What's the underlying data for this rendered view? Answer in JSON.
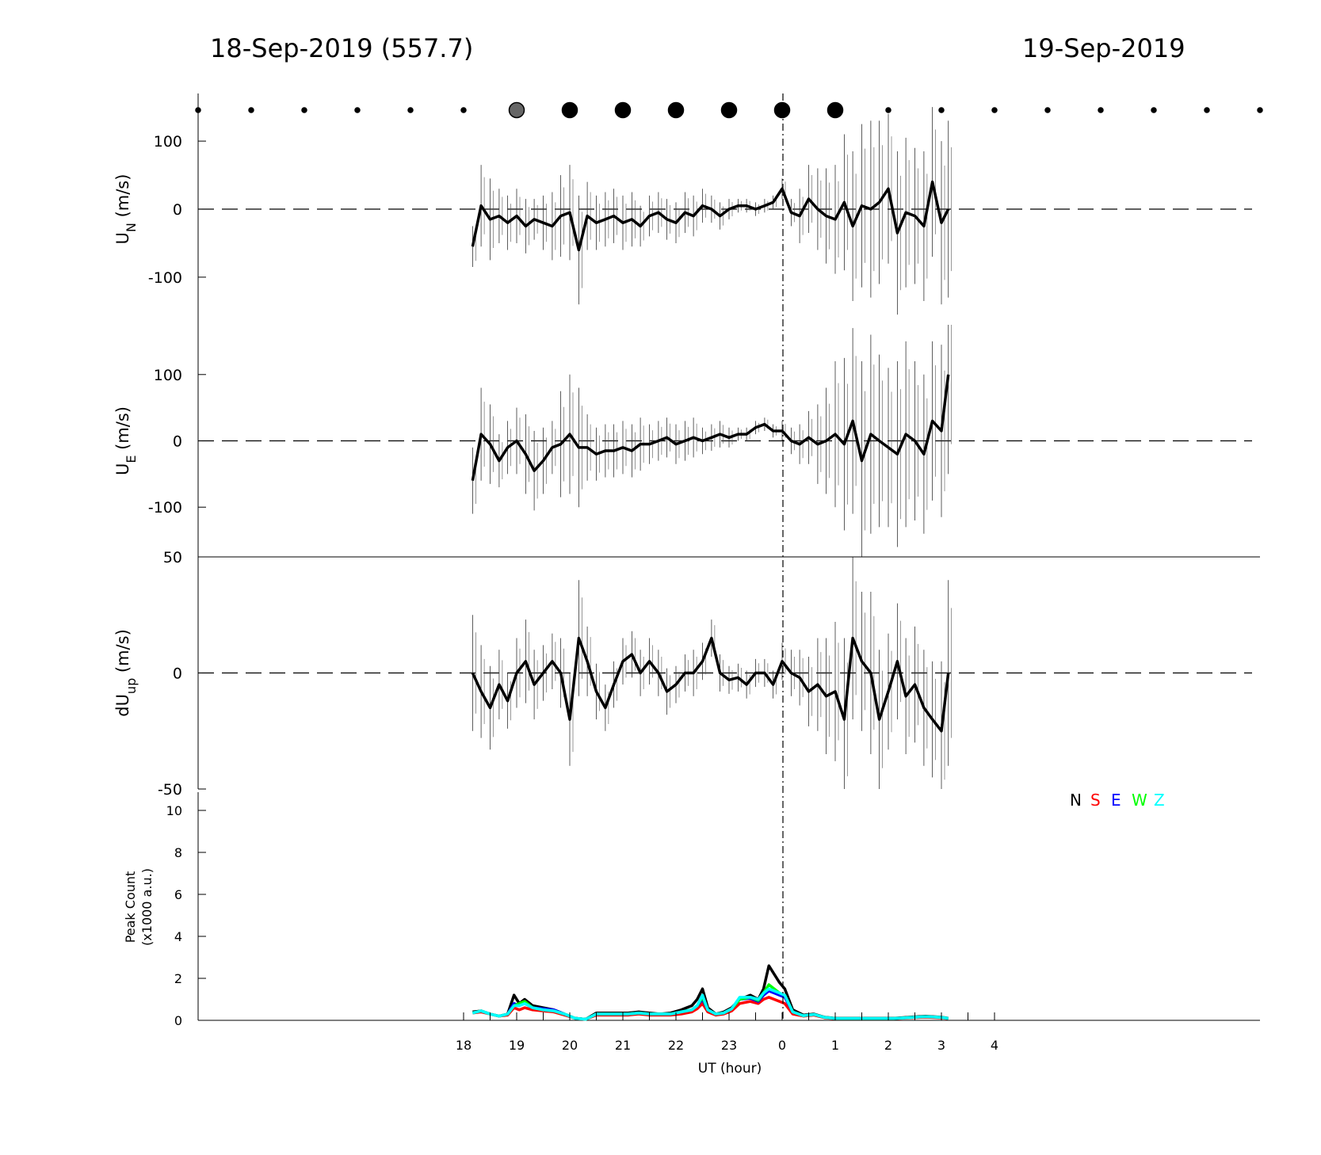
{
  "header": {
    "left_title": "18-Sep-2019 (557.7)",
    "right_title": "19-Sep-2019"
  },
  "x_axis": {
    "label": "UT (hour)",
    "tick_labels": [
      "18",
      "19",
      "20",
      "21",
      "22",
      "23",
      "0",
      "1",
      "2",
      "3",
      "4"
    ]
  },
  "legend": {
    "placement": "inside-top-right of bottom panel",
    "entries": [
      {
        "label": "N",
        "color": "#000000"
      },
      {
        "label": "S",
        "color": "#ff0000"
      },
      {
        "label": "E",
        "color": "#0000ff"
      },
      {
        "label": "W",
        "color": "#00ff00"
      },
      {
        "label": "Z",
        "color": "#00ffff"
      }
    ]
  },
  "chart_data": [
    {
      "type": "scatter",
      "panel": "sky-condition-dots",
      "x": [
        13.0,
        14.0,
        15.0,
        16.0,
        17.0,
        18.0,
        19.0,
        20.0,
        21.0,
        22.0,
        23.0,
        24.0,
        25.0,
        26.0,
        27.0,
        28.0,
        29.0,
        30.0,
        31.0,
        32.0,
        33.0
      ],
      "marker": [
        "small",
        "small",
        "small",
        "small",
        "small",
        "small",
        "large-gray",
        "large",
        "large",
        "large",
        "large",
        "large",
        "large",
        "small",
        "small",
        "small",
        "small",
        "small",
        "small",
        "small",
        "small"
      ],
      "xlim": [
        13.0,
        33.0
      ]
    },
    {
      "type": "line",
      "panel": "UN",
      "ylabel_main": "U",
      "ylabel_sub": "N",
      "ylabel_unit": " (m/s)",
      "ytick_labels": [
        "100",
        "0",
        "-100"
      ],
      "ylim": [
        -170,
        170
      ],
      "xlim": [
        13.0,
        33.0
      ],
      "reference_line": 0,
      "x": [
        18.17,
        18.33,
        18.5,
        18.67,
        18.83,
        19.0,
        19.17,
        19.33,
        19.5,
        19.67,
        19.83,
        20.0,
        20.17,
        20.33,
        20.5,
        20.67,
        20.83,
        21.0,
        21.17,
        21.33,
        21.5,
        21.67,
        21.83,
        22.0,
        22.17,
        22.33,
        22.5,
        22.67,
        22.83,
        23.0,
        23.17,
        23.33,
        23.5,
        23.67,
        23.83,
        24.0,
        24.17,
        24.33,
        24.5,
        24.67,
        24.83,
        25.0,
        25.17,
        25.33,
        25.5,
        25.67,
        25.83,
        26.0,
        26.17,
        26.33,
        26.5,
        26.67,
        26.83,
        27.0,
        27.13
      ],
      "values": [
        -55,
        5,
        -15,
        -10,
        -20,
        -10,
        -25,
        -15,
        -20,
        -25,
        -10,
        -5,
        -60,
        -10,
        -20,
        -15,
        -10,
        -20,
        -15,
        -25,
        -10,
        -5,
        -15,
        -20,
        -5,
        -10,
        5,
        0,
        -10,
        0,
        5,
        5,
        0,
        5,
        10,
        30,
        -5,
        -10,
        15,
        0,
        -10,
        -15,
        10,
        -25,
        5,
        0,
        10,
        30,
        -35,
        -5,
        -10,
        -25,
        40,
        -20,
        0
      ],
      "error": [
        30,
        60,
        60,
        40,
        40,
        40,
        40,
        30,
        40,
        50,
        60,
        70,
        80,
        50,
        40,
        40,
        40,
        40,
        40,
        30,
        30,
        30,
        30,
        30,
        30,
        30,
        25,
        20,
        20,
        15,
        10,
        10,
        10,
        10,
        10,
        15,
        20,
        40,
        50,
        60,
        70,
        80,
        100,
        110,
        120,
        130,
        120,
        110,
        120,
        110,
        100,
        110,
        110,
        120,
        130
      ]
    },
    {
      "type": "line",
      "panel": "UE",
      "ylabel_main": "U",
      "ylabel_sub": "E",
      "ylabel_unit": " (m/s)",
      "ytick_labels": [
        "100",
        "0",
        "-100"
      ],
      "ylim": [
        -175,
        175
      ],
      "xlim": [
        13.0,
        33.0
      ],
      "reference_line": 0,
      "x": [
        18.17,
        18.33,
        18.5,
        18.67,
        18.83,
        19.0,
        19.17,
        19.33,
        19.5,
        19.67,
        19.83,
        20.0,
        20.17,
        20.33,
        20.5,
        20.67,
        20.83,
        21.0,
        21.17,
        21.33,
        21.5,
        21.67,
        21.83,
        22.0,
        22.17,
        22.33,
        22.5,
        22.67,
        22.83,
        23.0,
        23.17,
        23.33,
        23.5,
        23.67,
        23.83,
        24.0,
        24.17,
        24.33,
        24.5,
        24.67,
        24.83,
        25.0,
        25.17,
        25.33,
        25.5,
        25.67,
        25.83,
        26.0,
        26.17,
        26.33,
        26.5,
        26.67,
        26.83,
        27.0,
        27.13
      ],
      "values": [
        -60,
        10,
        -5,
        -30,
        -10,
        0,
        -20,
        -45,
        -30,
        -10,
        -5,
        10,
        -10,
        -10,
        -20,
        -15,
        -15,
        -10,
        -15,
        -5,
        -5,
        0,
        5,
        -5,
        0,
        5,
        0,
        5,
        10,
        5,
        10,
        10,
        20,
        25,
        15,
        15,
        0,
        -5,
        5,
        -5,
        0,
        10,
        -5,
        30,
        -30,
        10,
        0,
        -10,
        -20,
        10,
        0,
        -20,
        30,
        15,
        100
      ],
      "error": [
        50,
        70,
        60,
        40,
        40,
        50,
        60,
        60,
        50,
        40,
        80,
        90,
        90,
        50,
        40,
        40,
        40,
        40,
        40,
        40,
        30,
        30,
        30,
        30,
        30,
        30,
        20,
        20,
        20,
        15,
        10,
        10,
        10,
        10,
        10,
        15,
        20,
        30,
        40,
        60,
        80,
        110,
        130,
        140,
        150,
        150,
        130,
        120,
        140,
        140,
        120,
        120,
        120,
        130,
        150
      ]
    },
    {
      "type": "line",
      "panel": "dUup",
      "ylabel_main": "dU",
      "ylabel_sub": "up",
      "ylabel_unit": " (m/s)",
      "ytick_labels": [
        "50",
        "0",
        "-50"
      ],
      "ylim": [
        -50,
        50
      ],
      "xlim": [
        13.0,
        33.0
      ],
      "reference_line": 0,
      "x": [
        18.17,
        18.33,
        18.5,
        18.67,
        18.83,
        19.0,
        19.17,
        19.33,
        19.5,
        19.67,
        19.83,
        20.0,
        20.17,
        20.33,
        20.5,
        20.67,
        20.83,
        21.0,
        21.17,
        21.33,
        21.5,
        21.67,
        21.83,
        22.0,
        22.17,
        22.33,
        22.5,
        22.67,
        22.83,
        23.0,
        23.17,
        23.33,
        23.5,
        23.67,
        23.83,
        24.0,
        24.17,
        24.33,
        24.5,
        24.67,
        24.83,
        25.0,
        25.17,
        25.33,
        25.5,
        25.67,
        25.83,
        26.0,
        26.17,
        26.33,
        26.5,
        26.67,
        26.83,
        27.0,
        27.13
      ],
      "values": [
        0,
        -8,
        -15,
        -5,
        -12,
        0,
        5,
        -5,
        0,
        5,
        0,
        -20,
        15,
        5,
        -8,
        -15,
        -5,
        5,
        8,
        0,
        5,
        0,
        -8,
        -5,
        0,
        0,
        5,
        15,
        0,
        -3,
        -2,
        -5,
        0,
        0,
        -5,
        5,
        0,
        -2,
        -8,
        -5,
        -10,
        -8,
        -20,
        15,
        5,
        0,
        -20,
        -8,
        5,
        -10,
        -5,
        -15,
        -20,
        -25,
        0
      ],
      "error": [
        25,
        20,
        18,
        15,
        12,
        15,
        18,
        15,
        12,
        12,
        15,
        20,
        25,
        15,
        12,
        10,
        10,
        10,
        10,
        10,
        10,
        10,
        10,
        8,
        8,
        10,
        8,
        8,
        8,
        6,
        6,
        6,
        6,
        6,
        6,
        8,
        10,
        12,
        15,
        20,
        25,
        30,
        35,
        35,
        30,
        35,
        30,
        25,
        25,
        25,
        25,
        25,
        25,
        30,
        40
      ]
    },
    {
      "type": "line",
      "panel": "peak-count",
      "ylabel_line1": "Peak Count",
      "ylabel_line2": "(x1000 a.u.)",
      "ytick_labels": [
        "10",
        "8",
        "6",
        "4",
        "2",
        "0"
      ],
      "ylim": [
        0,
        10
      ],
      "xlim": [
        13.0,
        33.0
      ],
      "x": [
        18.17,
        18.33,
        18.5,
        18.67,
        18.83,
        18.95,
        19.05,
        19.15,
        19.3,
        19.5,
        19.7,
        19.9,
        20.1,
        20.3,
        20.5,
        20.7,
        20.9,
        21.1,
        21.3,
        21.5,
        21.7,
        21.9,
        22.1,
        22.3,
        22.4,
        22.5,
        22.6,
        22.75,
        22.9,
        23.05,
        23.2,
        23.4,
        23.55,
        23.65,
        23.75,
        23.85,
        23.95,
        24.05,
        24.2,
        24.4,
        24.6,
        24.8,
        25.0,
        25.2,
        25.5,
        25.8,
        26.1,
        26.4,
        26.7,
        27.0,
        27.13
      ],
      "series": [
        {
          "name": "N",
          "color": "#000000",
          "values": [
            0.4,
            0.45,
            0.3,
            0.2,
            0.3,
            1.2,
            0.8,
            1.0,
            0.7,
            0.6,
            0.5,
            0.3,
            0.1,
            0.05,
            0.35,
            0.35,
            0.35,
            0.35,
            0.4,
            0.35,
            0.3,
            0.35,
            0.5,
            0.7,
            1.0,
            1.5,
            0.6,
            0.3,
            0.4,
            0.6,
            1.0,
            1.2,
            1.0,
            1.5,
            2.6,
            2.2,
            1.8,
            1.5,
            0.5,
            0.25,
            0.3,
            0.15,
            0.1,
            0.1,
            0.1,
            0.1,
            0.1,
            0.15,
            0.2,
            0.15,
            0.1
          ]
        },
        {
          "name": "S",
          "color": "#ff0000",
          "values": [
            0.35,
            0.4,
            0.3,
            0.2,
            0.25,
            0.6,
            0.5,
            0.6,
            0.5,
            0.45,
            0.4,
            0.25,
            0.1,
            0.05,
            0.25,
            0.25,
            0.25,
            0.25,
            0.3,
            0.25,
            0.25,
            0.25,
            0.3,
            0.4,
            0.55,
            0.8,
            0.4,
            0.25,
            0.3,
            0.45,
            0.8,
            0.9,
            0.8,
            1.0,
            1.1,
            1.0,
            0.9,
            0.8,
            0.3,
            0.2,
            0.25,
            0.12,
            0.08,
            0.08,
            0.08,
            0.08,
            0.08,
            0.12,
            0.15,
            0.12,
            0.08
          ]
        },
        {
          "name": "E",
          "color": "#0000ff",
          "values": [
            0.35,
            0.45,
            0.3,
            0.2,
            0.3,
            0.8,
            0.7,
            0.8,
            0.6,
            0.55,
            0.5,
            0.3,
            0.1,
            0.05,
            0.3,
            0.3,
            0.3,
            0.3,
            0.35,
            0.3,
            0.3,
            0.3,
            0.4,
            0.5,
            0.7,
            1.0,
            0.5,
            0.3,
            0.35,
            0.55,
            1.0,
            1.05,
            0.9,
            1.2,
            1.4,
            1.3,
            1.2,
            1.1,
            0.4,
            0.22,
            0.28,
            0.14,
            0.09,
            0.09,
            0.09,
            0.09,
            0.09,
            0.13,
            0.18,
            0.14,
            0.09
          ]
        },
        {
          "name": "W",
          "color": "#00ff00",
          "values": [
            0.35,
            0.45,
            0.3,
            0.2,
            0.3,
            0.7,
            0.8,
            0.9,
            0.6,
            0.5,
            0.45,
            0.3,
            0.1,
            0.05,
            0.3,
            0.3,
            0.3,
            0.3,
            0.35,
            0.3,
            0.3,
            0.3,
            0.4,
            0.5,
            0.7,
            1.1,
            0.5,
            0.3,
            0.35,
            0.55,
            1.0,
            1.1,
            0.95,
            1.3,
            1.7,
            1.5,
            1.3,
            1.2,
            0.4,
            0.22,
            0.28,
            0.14,
            0.09,
            0.09,
            0.09,
            0.09,
            0.09,
            0.13,
            0.18,
            0.14,
            0.09
          ]
        },
        {
          "name": "Z",
          "color": "#00ffff",
          "values": [
            0.35,
            0.45,
            0.3,
            0.2,
            0.3,
            0.7,
            0.7,
            0.8,
            0.6,
            0.5,
            0.45,
            0.3,
            0.1,
            0.05,
            0.3,
            0.3,
            0.3,
            0.3,
            0.35,
            0.3,
            0.3,
            0.3,
            0.4,
            0.5,
            0.7,
            1.2,
            0.5,
            0.3,
            0.35,
            0.55,
            1.1,
            1.1,
            1.0,
            1.3,
            1.5,
            1.4,
            1.3,
            1.2,
            0.4,
            0.22,
            0.28,
            0.14,
            0.09,
            0.09,
            0.09,
            0.09,
            0.09,
            0.13,
            0.18,
            0.14,
            0.09
          ]
        }
      ]
    }
  ]
}
